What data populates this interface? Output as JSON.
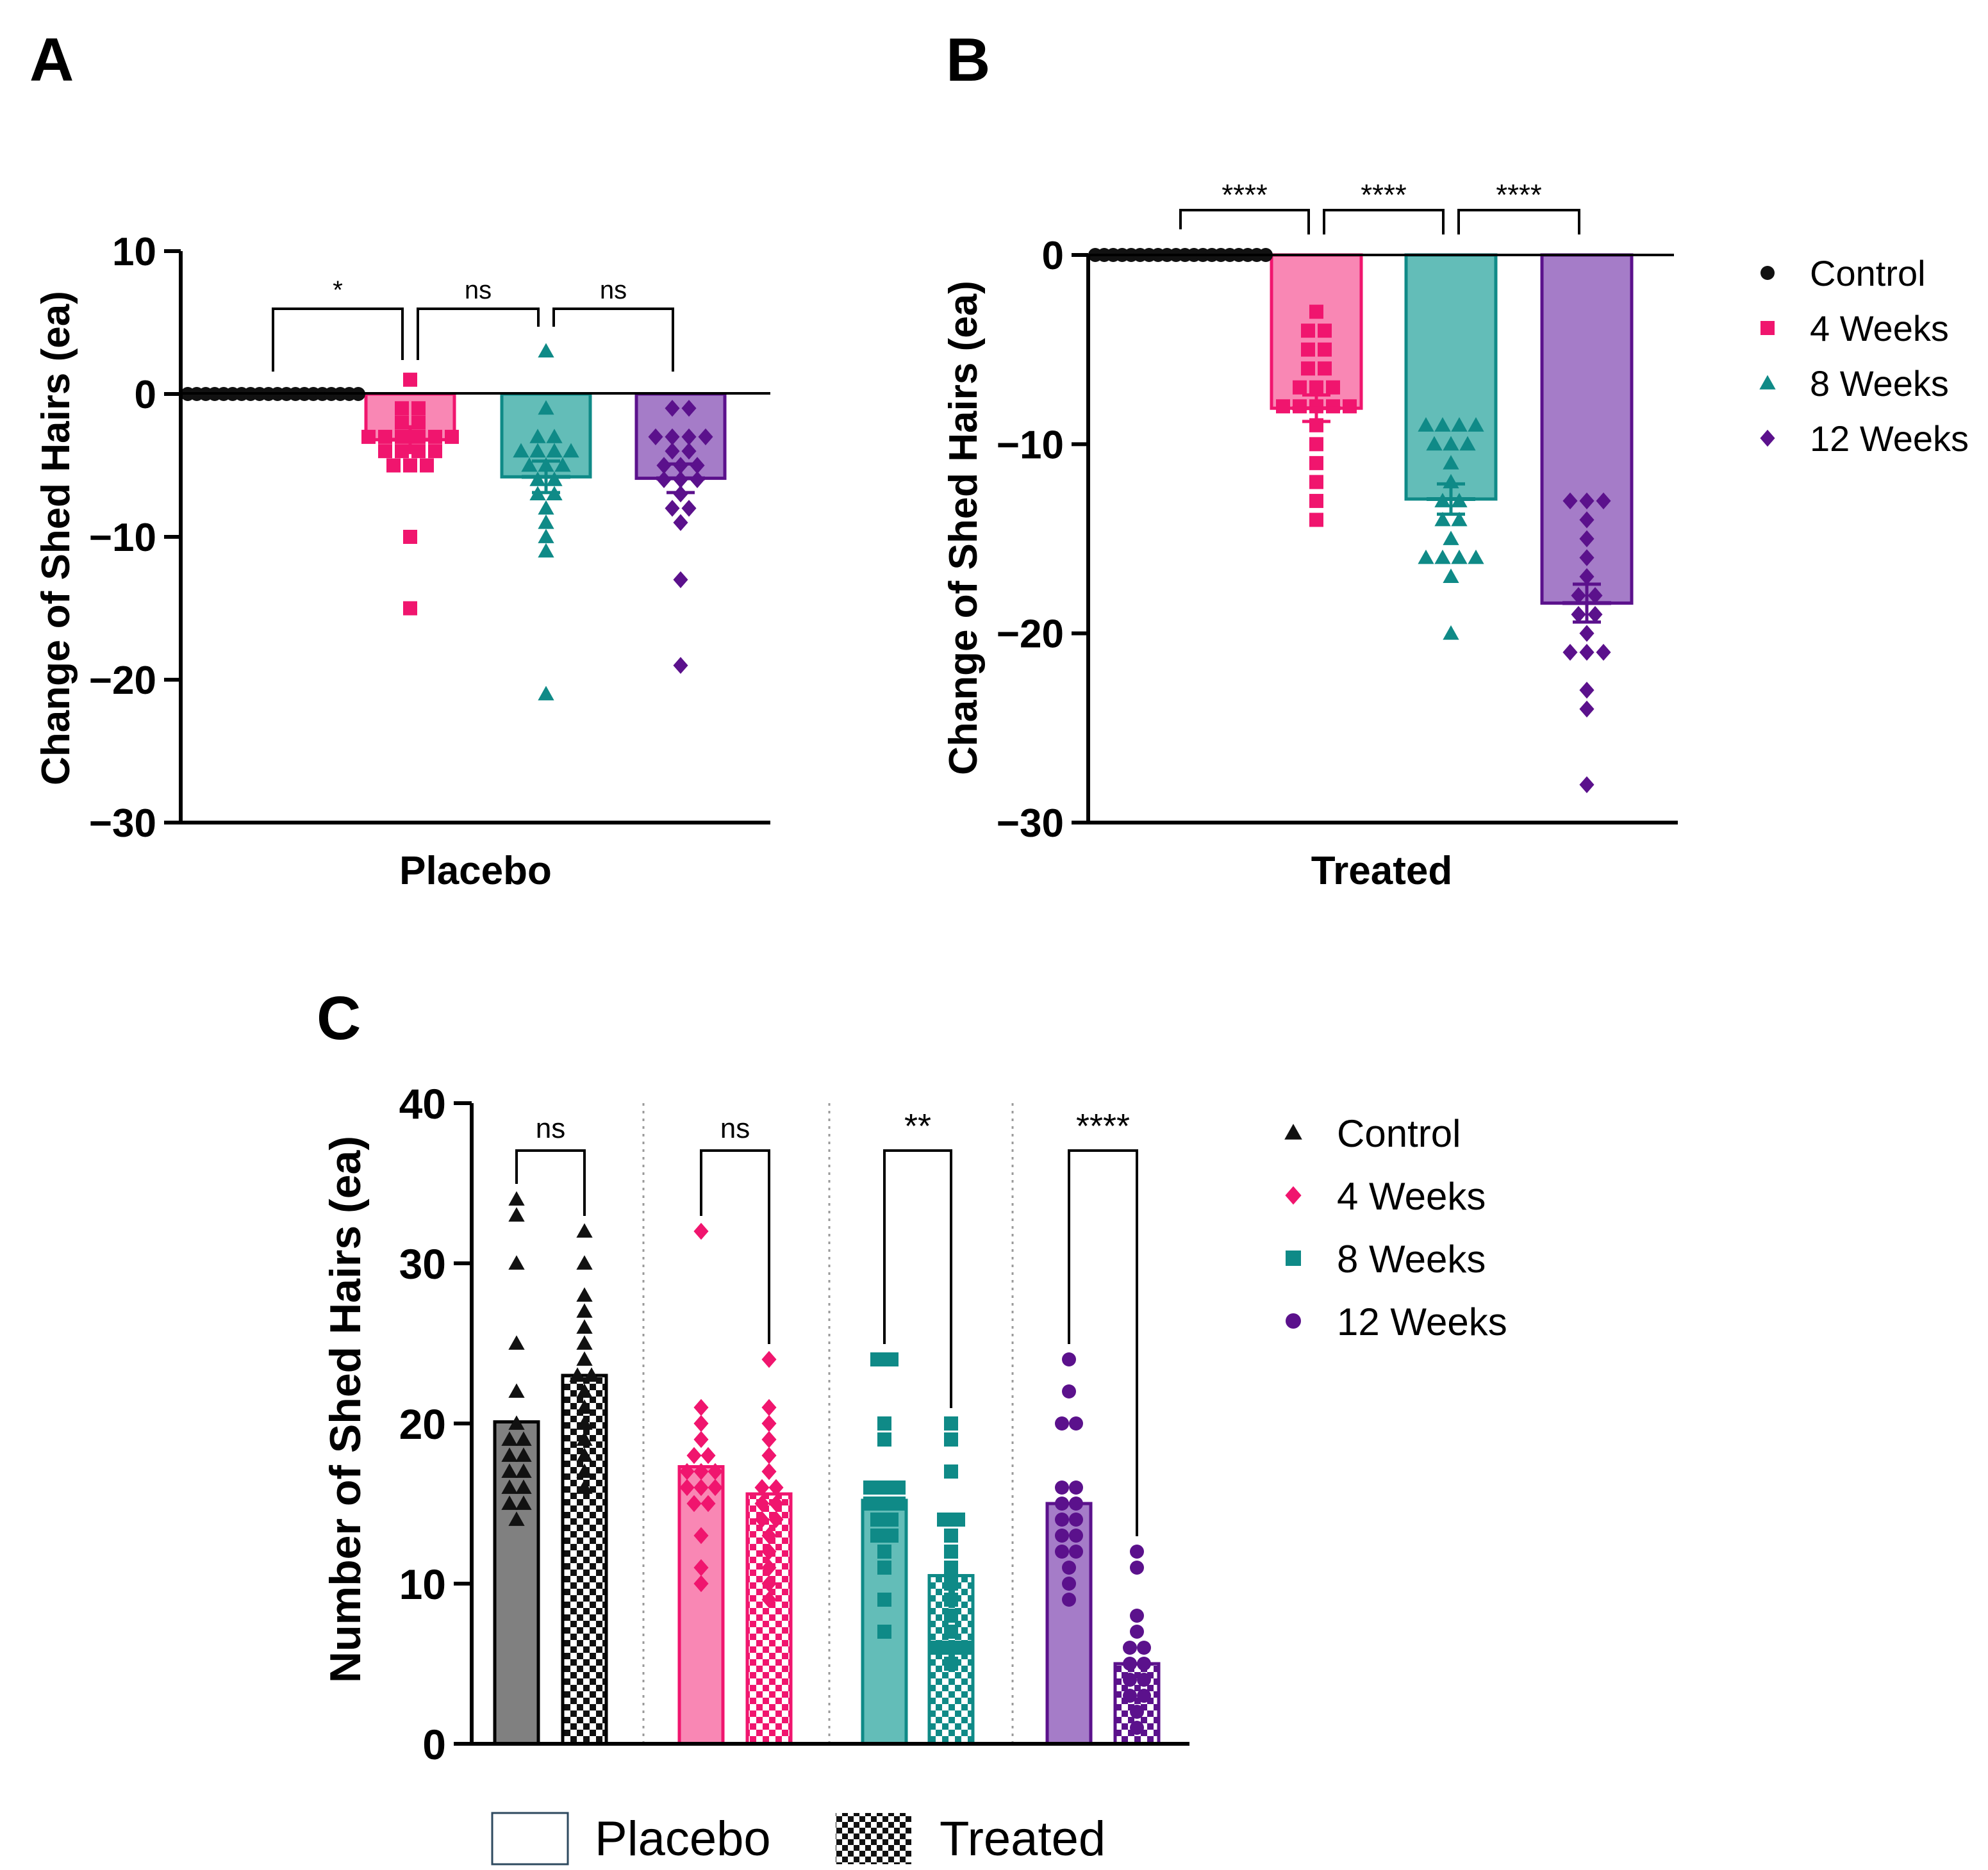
{
  "colors": {
    "control": "#111111",
    "week4": "#f0156e",
    "week8": "#0f8a87",
    "week12": "#5b118c",
    "bar4": "#f987b4",
    "bar8": "#63bdb8",
    "bar12": "#a57cc8",
    "barControl": "#808080"
  },
  "chart_data": [
    {
      "panel": "A",
      "type": "bar",
      "title": "A",
      "ylabel": "Change of Shed Hairs (ea)",
      "xlabel": "Placebo",
      "ylim": [
        -30,
        10
      ],
      "yticks": [
        "10",
        "0",
        "−10",
        "−20",
        "−30"
      ],
      "ytick_values": [
        10,
        0,
        -10,
        -20,
        -30
      ],
      "groups": [
        "Control",
        "4 Weeks",
        "8 Weeks",
        "12 Weeks"
      ],
      "means": [
        0,
        -3.2,
        -5.8,
        -5.9
      ],
      "sem": [
        0,
        0.9,
        1.1,
        1.0
      ],
      "points": [
        [
          0,
          0,
          0,
          0,
          0,
          0,
          0,
          0,
          0,
          0,
          0,
          0,
          0,
          0,
          0,
          0,
          0,
          0,
          0,
          0
        ],
        [
          1,
          -1,
          -1,
          -2,
          -2,
          -3,
          -3,
          -3,
          -3,
          -3,
          -3,
          -4,
          -4,
          -4,
          -4,
          -5,
          -5,
          -5,
          -10,
          -15
        ],
        [
          3,
          -1,
          -3,
          -3,
          -4,
          -4,
          -4,
          -4,
          -5,
          -5,
          -5,
          -6,
          -6,
          -7,
          -7,
          -8,
          -9,
          -10,
          -11,
          -21
        ],
        [
          -1,
          -1,
          -3,
          -3,
          -3,
          -3,
          -4,
          -4,
          -5,
          -5,
          -5,
          -6,
          -6,
          -6,
          -7,
          -8,
          -8,
          -9,
          -13,
          -19
        ]
      ],
      "comparisons": [
        {
          "label": "*",
          "from": 0,
          "to": 1
        },
        {
          "label": "ns",
          "from": 1,
          "to": 2
        },
        {
          "label": "ns",
          "from": 2,
          "to": 3
        }
      ]
    },
    {
      "panel": "B",
      "type": "bar",
      "title": "B",
      "ylabel": "Change of Shed Hairs (ea)",
      "xlabel": "Treated",
      "ylim": [
        -30,
        0
      ],
      "yticks": [
        "0",
        "−10",
        "−20",
        "−30"
      ],
      "ytick_values": [
        0,
        -10,
        -20,
        -30
      ],
      "groups": [
        "Control",
        "4 Weeks",
        "8 Weeks",
        "12 Weeks"
      ],
      "means": [
        0,
        -8.1,
        -12.9,
        -18.4
      ],
      "sem": [
        0,
        0.7,
        0.8,
        1.0
      ],
      "points": [
        [
          0,
          0,
          0,
          0,
          0,
          0,
          0,
          0,
          0,
          0,
          0,
          0,
          0,
          0,
          0,
          0,
          0,
          0,
          0,
          0
        ],
        [
          -3,
          -4,
          -4,
          -5,
          -5,
          -6,
          -6,
          -7,
          -7,
          -7,
          -8,
          -8,
          -8,
          -8,
          -8,
          -9,
          -10,
          -11,
          -12,
          -13,
          -14
        ],
        [
          -9,
          -9,
          -9,
          -9,
          -10,
          -10,
          -10,
          -11,
          -12,
          -13,
          -13,
          -14,
          -14,
          -15,
          -16,
          -16,
          -16,
          -16,
          -17,
          -20
        ],
        [
          -13,
          -13,
          -13,
          -14,
          -15,
          -16,
          -17,
          -18,
          -18,
          -19,
          -19,
          -20,
          -21,
          -21,
          -21,
          -23,
          -24,
          -28
        ]
      ],
      "comparisons": [
        {
          "label": "****",
          "from": 0,
          "to": 1
        },
        {
          "label": "****",
          "from": 1,
          "to": 2
        },
        {
          "label": "****",
          "from": 2,
          "to": 3
        }
      ],
      "legend": [
        "Control",
        "4 Weeks",
        "8 Weeks",
        "12 Weeks"
      ]
    },
    {
      "panel": "C",
      "type": "bar",
      "title": "C",
      "ylabel": "Number of Shed Hairs (ea)",
      "ylim": [
        0,
        40
      ],
      "yticks": [
        "0",
        "10",
        "20",
        "30",
        "40"
      ],
      "ytick_values": [
        0,
        10,
        20,
        30,
        40
      ],
      "groups": [
        "Control",
        "4 Weeks",
        "8 Weeks",
        "12 Weeks"
      ],
      "series": [
        {
          "name": "Placebo",
          "values": [
            20.1,
            17.3,
            15.2,
            15.0
          ],
          "points": [
            [
              34,
              33,
              30,
              25,
              22,
              20,
              19,
              19,
              18,
              18,
              17,
              17,
              16,
              16,
              15,
              15,
              14
            ],
            [
              32,
              21,
              20,
              19,
              18,
              18,
              17,
              17,
              17,
              16,
              16,
              16,
              15,
              15,
              13,
              11,
              10
            ],
            [
              24,
              24,
              20,
              19,
              16,
              16,
              16,
              15,
              15,
              15,
              14,
              14,
              13,
              13,
              12,
              11,
              9,
              7
            ],
            [
              24,
              22,
              20,
              20,
              16,
              16,
              15,
              15,
              14,
              14,
              13,
              13,
              12,
              12,
              11,
              10,
              9
            ]
          ]
        },
        {
          "name": "Treated",
          "values": [
            23.0,
            15.6,
            10.5,
            5.0
          ],
          "points": [
            [
              32,
              30,
              28,
              27,
              26,
              25,
              24,
              23,
              23,
              22,
              21,
              20,
              19,
              18,
              17,
              16
            ],
            [
              24,
              21,
              20,
              19,
              18,
              17,
              16,
              16,
              15,
              15,
              14,
              14,
              13,
              12,
              11,
              10,
              9
            ],
            [
              20,
              19,
              17,
              14,
              14,
              13,
              12,
              11,
              10,
              9,
              8,
              7,
              6,
              6,
              6,
              5
            ],
            [
              12,
              11,
              8,
              7,
              6,
              6,
              5,
              5,
              4,
              4,
              3,
              3,
              2,
              1
            ]
          ]
        }
      ],
      "comparisons": [
        "ns",
        "ns",
        "**",
        "****"
      ],
      "legend": [
        "Control",
        "4 Weeks",
        "8 Weeks",
        "12 Weeks"
      ],
      "group_legend": [
        "Placebo",
        "Treated"
      ]
    }
  ]
}
